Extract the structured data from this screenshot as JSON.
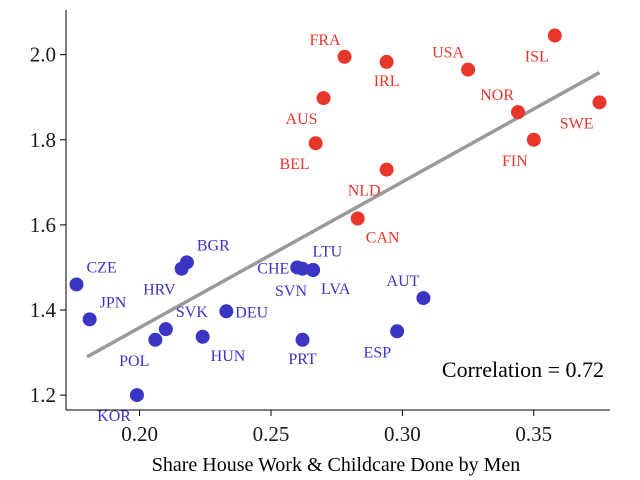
{
  "chart_data": {
    "type": "scatter",
    "title": "",
    "xlabel": "Share House Work & Childcare Done by Men",
    "ylabel": "",
    "xlim": [
      0.172,
      0.379
    ],
    "ylim": [
      1.165,
      2.105
    ],
    "xticks": [
      0.2,
      0.25,
      0.3,
      0.35
    ],
    "xtick_labels": [
      "0.20",
      "0.25",
      "0.30",
      "0.35"
    ],
    "yticks": [
      1.2,
      1.4,
      1.6,
      1.8,
      2.0
    ],
    "ytick_labels": [
      "1.2",
      "1.4",
      "1.6",
      "1.8",
      "2.0"
    ],
    "grid": false,
    "colors": {
      "high": "#e8362a",
      "low": "#3a35c2",
      "trend": "#9a9a9a"
    },
    "series": [
      {
        "name": "high",
        "points": [
          {
            "label": "FRA",
            "x": 0.278,
            "y": 1.995,
            "anchor": "top-left"
          },
          {
            "label": "IRL",
            "x": 0.294,
            "y": 1.983,
            "anchor": "bottom"
          },
          {
            "label": "USA",
            "x": 0.325,
            "y": 1.965,
            "anchor": "top-left"
          },
          {
            "label": "ISL",
            "x": 0.358,
            "y": 2.045,
            "anchor": "bottom-left"
          },
          {
            "label": "NOR",
            "x": 0.344,
            "y": 1.865,
            "anchor": "top-left"
          },
          {
            "label": "AUS",
            "x": 0.27,
            "y": 1.898,
            "anchor": "bottom-left"
          },
          {
            "label": "SWE",
            "x": 0.375,
            "y": 1.888,
            "anchor": "bottom-left"
          },
          {
            "label": "BEL",
            "x": 0.267,
            "y": 1.792,
            "anchor": "bottom-left"
          },
          {
            "label": "FIN",
            "x": 0.35,
            "y": 1.8,
            "anchor": "bottom-left"
          },
          {
            "label": "NLD",
            "x": 0.294,
            "y": 1.73,
            "anchor": "bottom-left"
          },
          {
            "label": "CAN",
            "x": 0.283,
            "y": 1.615,
            "anchor": "bottom-right"
          }
        ]
      },
      {
        "name": "low",
        "points": [
          {
            "label": "CZE",
            "x": 0.176,
            "y": 1.46,
            "anchor": "top-right"
          },
          {
            "label": "JPN",
            "x": 0.181,
            "y": 1.378,
            "anchor": "top-right"
          },
          {
            "label": "BGR",
            "x": 0.218,
            "y": 1.512,
            "anchor": "top-right"
          },
          {
            "label": "HRV",
            "x": 0.216,
            "y": 1.497,
            "anchor": "bottom-left"
          },
          {
            "label": "SVK",
            "x": 0.21,
            "y": 1.355,
            "anchor": "top-right"
          },
          {
            "label": "POL",
            "x": 0.206,
            "y": 1.33,
            "anchor": "bottom-left"
          },
          {
            "label": "HUN",
            "x": 0.224,
            "y": 1.337,
            "anchor": "bottom-right"
          },
          {
            "label": "DEU",
            "x": 0.233,
            "y": 1.397,
            "anchor": "right"
          },
          {
            "label": "CHE",
            "x": 0.26,
            "y": 1.5,
            "anchor": "left"
          },
          {
            "label": "LTU",
            "x": 0.262,
            "y": 1.497,
            "anchor": "top-right"
          },
          {
            "label": "SVN",
            "x": 0.266,
            "y": 1.494,
            "anchor": "bottom-left"
          },
          {
            "label": "LVA",
            "x": 0.266,
            "y": 1.494,
            "anchor": "bottom-right"
          },
          {
            "label": "PRT",
            "x": 0.262,
            "y": 1.33,
            "anchor": "bottom"
          },
          {
            "label": "AUT",
            "x": 0.308,
            "y": 1.428,
            "anchor": "top-left"
          },
          {
            "label": "ESP",
            "x": 0.298,
            "y": 1.35,
            "anchor": "bottom-left"
          },
          {
            "label": "KOR",
            "x": 0.199,
            "y": 1.2,
            "anchor": "bottom-left"
          }
        ]
      }
    ],
    "trendline": {
      "x": [
        0.18,
        0.375
      ],
      "y": [
        1.29,
        1.958
      ]
    },
    "annotation": "Correlation = 0.72"
  }
}
